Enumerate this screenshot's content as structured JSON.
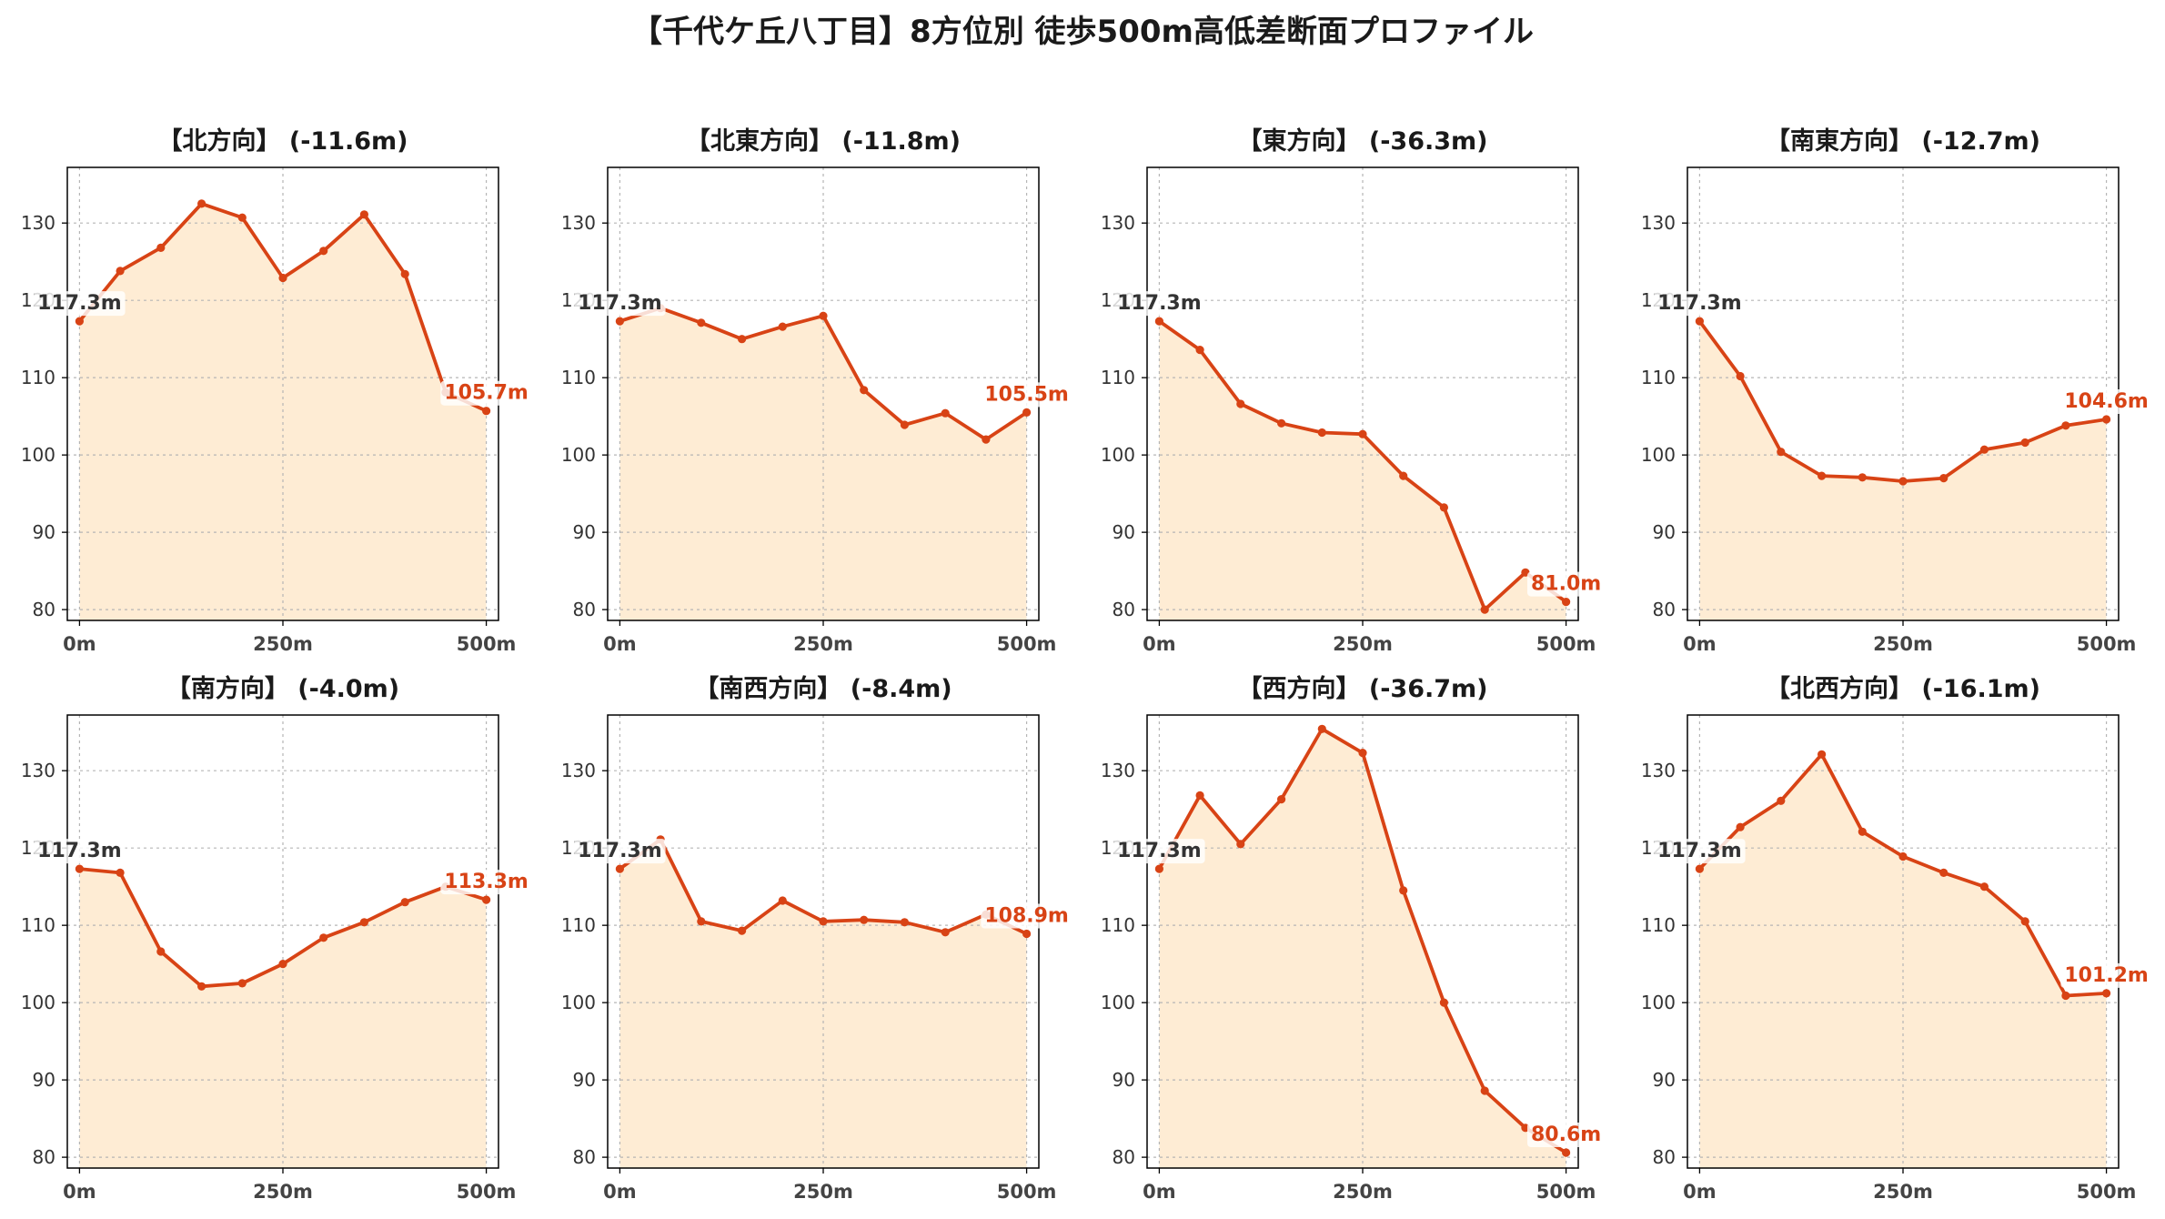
{
  "figure": {
    "title": "【千代ケ丘八丁目】8方位別 徒歩500m高低差断面プロファイル"
  },
  "colors": {
    "line": "#d84315",
    "fill": "#feecd4",
    "start_label": "#333333",
    "end_label": "#d84315",
    "grid": "#b5b5b5",
    "axes": "#000000",
    "title_text": "#1a1a1a",
    "tick_text": "#333333",
    "xtick_text": "#444444"
  },
  "chart_data": [
    {
      "type": "area",
      "markers": true,
      "grid": true,
      "title": "【北方向】 (-11.6m)",
      "x": [
        0,
        50,
        100,
        150,
        200,
        250,
        300,
        350,
        400,
        450,
        500
      ],
      "y": [
        117.3,
        123.8,
        126.8,
        132.5,
        130.7,
        122.9,
        126.4,
        131.1,
        123.4,
        108.1,
        105.7
      ],
      "xticks": [
        0,
        250,
        500
      ],
      "xtick_labels": [
        "0m",
        "250m",
        "500m"
      ],
      "yticks": [
        80,
        90,
        100,
        110,
        120,
        130
      ],
      "xlim": [
        -15,
        515
      ],
      "ylim": [
        78.6,
        137.2
      ],
      "annotations": {
        "start": "117.3m",
        "end": "105.7m"
      }
    },
    {
      "type": "area",
      "markers": true,
      "grid": true,
      "title": "【北東方向】 (-11.8m)",
      "x": [
        0,
        50,
        100,
        150,
        200,
        250,
        300,
        350,
        400,
        450,
        500
      ],
      "y": [
        117.3,
        119.0,
        117.1,
        115.0,
        116.6,
        118.0,
        108.4,
        103.9,
        105.4,
        102.0,
        105.5
      ],
      "xticks": [
        0,
        250,
        500
      ],
      "xtick_labels": [
        "0m",
        "250m",
        "500m"
      ],
      "yticks": [
        80,
        90,
        100,
        110,
        120,
        130
      ],
      "xlim": [
        -15,
        515
      ],
      "ylim": [
        78.6,
        137.2
      ],
      "annotations": {
        "start": "117.3m",
        "end": "105.5m"
      }
    },
    {
      "type": "area",
      "markers": true,
      "grid": true,
      "title": "【東方向】 (-36.3m)",
      "x": [
        0,
        50,
        100,
        150,
        200,
        250,
        300,
        350,
        400,
        450,
        500
      ],
      "y": [
        117.3,
        113.6,
        106.6,
        104.1,
        102.9,
        102.7,
        97.3,
        93.2,
        80.0,
        84.8,
        81.0
      ],
      "xticks": [
        0,
        250,
        500
      ],
      "xtick_labels": [
        "0m",
        "250m",
        "500m"
      ],
      "yticks": [
        80,
        90,
        100,
        110,
        120,
        130
      ],
      "xlim": [
        -15,
        515
      ],
      "ylim": [
        78.6,
        137.2
      ],
      "annotations": {
        "start": "117.3m",
        "end": "81.0m"
      }
    },
    {
      "type": "area",
      "markers": true,
      "grid": true,
      "title": "【南東方向】 (-12.7m)",
      "x": [
        0,
        50,
        100,
        150,
        200,
        250,
        300,
        350,
        400,
        450,
        500
      ],
      "y": [
        117.3,
        110.2,
        100.4,
        97.3,
        97.1,
        96.6,
        97.0,
        100.7,
        101.6,
        103.8,
        104.6
      ],
      "xticks": [
        0,
        250,
        500
      ],
      "xtick_labels": [
        "0m",
        "250m",
        "500m"
      ],
      "yticks": [
        80,
        90,
        100,
        110,
        120,
        130
      ],
      "xlim": [
        -15,
        515
      ],
      "ylim": [
        78.6,
        137.2
      ],
      "annotations": {
        "start": "117.3m",
        "end": "104.6m"
      }
    },
    {
      "type": "area",
      "markers": true,
      "grid": true,
      "title": "【南方向】 (-4.0m)",
      "x": [
        0,
        50,
        100,
        150,
        200,
        250,
        300,
        350,
        400,
        450,
        500
      ],
      "y": [
        117.3,
        116.8,
        106.6,
        102.1,
        102.5,
        105.0,
        108.4,
        110.4,
        113.0,
        115.0,
        113.3
      ],
      "xticks": [
        0,
        250,
        500
      ],
      "xtick_labels": [
        "0m",
        "250m",
        "500m"
      ],
      "yticks": [
        80,
        90,
        100,
        110,
        120,
        130
      ],
      "xlim": [
        -15,
        515
      ],
      "ylim": [
        78.6,
        137.2
      ],
      "annotations": {
        "start": "117.3m",
        "end": "113.3m"
      }
    },
    {
      "type": "area",
      "markers": true,
      "grid": true,
      "title": "【南西方向】 (-8.4m)",
      "x": [
        0,
        50,
        100,
        150,
        200,
        250,
        300,
        350,
        400,
        450,
        500
      ],
      "y": [
        117.3,
        121.1,
        110.5,
        109.3,
        113.2,
        110.5,
        110.7,
        110.4,
        109.1,
        111.4,
        108.9
      ],
      "xticks": [
        0,
        250,
        500
      ],
      "xtick_labels": [
        "0m",
        "250m",
        "500m"
      ],
      "yticks": [
        80,
        90,
        100,
        110,
        120,
        130
      ],
      "xlim": [
        -15,
        515
      ],
      "ylim": [
        78.6,
        137.2
      ],
      "annotations": {
        "start": "117.3m",
        "end": "108.9m"
      }
    },
    {
      "type": "area",
      "markers": true,
      "grid": true,
      "title": "【西方向】 (-36.7m)",
      "x": [
        0,
        50,
        100,
        150,
        200,
        250,
        300,
        350,
        400,
        450,
        500
      ],
      "y": [
        117.3,
        126.8,
        120.5,
        126.3,
        135.4,
        132.3,
        114.5,
        100.0,
        88.6,
        83.8,
        80.6
      ],
      "xticks": [
        0,
        250,
        500
      ],
      "xtick_labels": [
        "0m",
        "250m",
        "500m"
      ],
      "yticks": [
        80,
        90,
        100,
        110,
        120,
        130
      ],
      "xlim": [
        -15,
        515
      ],
      "ylim": [
        78.6,
        137.2
      ],
      "annotations": {
        "start": "117.3m",
        "end": "80.6m"
      }
    },
    {
      "type": "area",
      "markers": true,
      "grid": true,
      "title": "【北西方向】 (-16.1m)",
      "x": [
        0,
        50,
        100,
        150,
        200,
        250,
        300,
        350,
        400,
        450,
        500
      ],
      "y": [
        117.3,
        122.7,
        126.1,
        132.1,
        122.1,
        118.9,
        116.8,
        115.0,
        110.5,
        100.9,
        101.2
      ],
      "xticks": [
        0,
        250,
        500
      ],
      "xtick_labels": [
        "0m",
        "250m",
        "500m"
      ],
      "yticks": [
        80,
        90,
        100,
        110,
        120,
        130
      ],
      "xlim": [
        -15,
        515
      ],
      "ylim": [
        78.6,
        137.2
      ],
      "annotations": {
        "start": "117.3m",
        "end": "101.2m"
      }
    }
  ]
}
